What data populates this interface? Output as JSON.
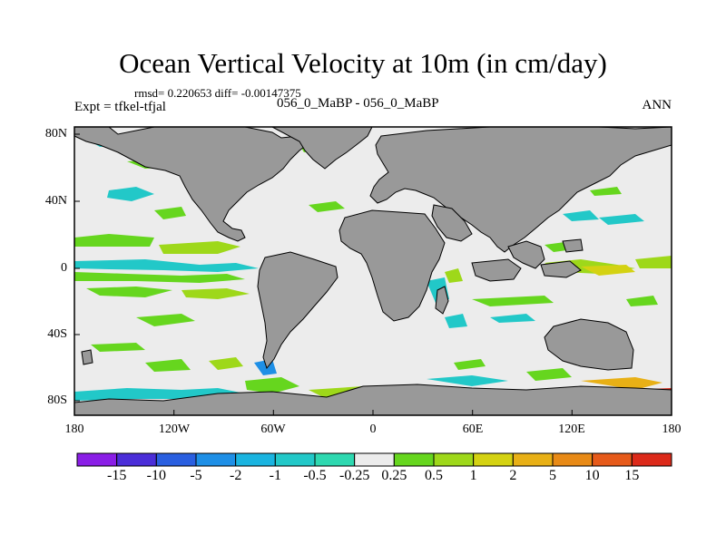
{
  "title": "Ocean Vertical Velocity at 10m (in cm/day)",
  "stats": "rmsd= 0.220653 diff= -0.00147375",
  "expt": "Expt = tfkel-tfjal",
  "experiment_names": "056_0_MaBP - 056_0_MaBP",
  "season": "ANN",
  "x_ticks": [
    "180",
    "120W",
    "60W",
    "0",
    "60E",
    "120E",
    "180"
  ],
  "y_ticks": [
    "80N",
    "40N",
    "0",
    "40S",
    "80S"
  ],
  "colorbar": {
    "labels": [
      "-15",
      "-10",
      "-5",
      "-2",
      "-1",
      "-0.5",
      "-0.25",
      "0.25",
      "0.5",
      "1",
      "2",
      "5",
      "10",
      "15"
    ],
    "colors": [
      "#8a1ee6",
      "#4b2ed8",
      "#2a5fe0",
      "#1e8fe6",
      "#1ab4e0",
      "#22c8c8",
      "#2ed8b0",
      "#ececec",
      "#66d61e",
      "#9ed81a",
      "#d4d212",
      "#e8b016",
      "#e88a16",
      "#e65a1a",
      "#dc2a1a"
    ]
  },
  "colors": {
    "land": "#999999",
    "ocean_neutral": "#ececec"
  },
  "map_extent": {
    "lon": [
      -180,
      180
    ],
    "lat": [
      -90,
      90
    ]
  }
}
